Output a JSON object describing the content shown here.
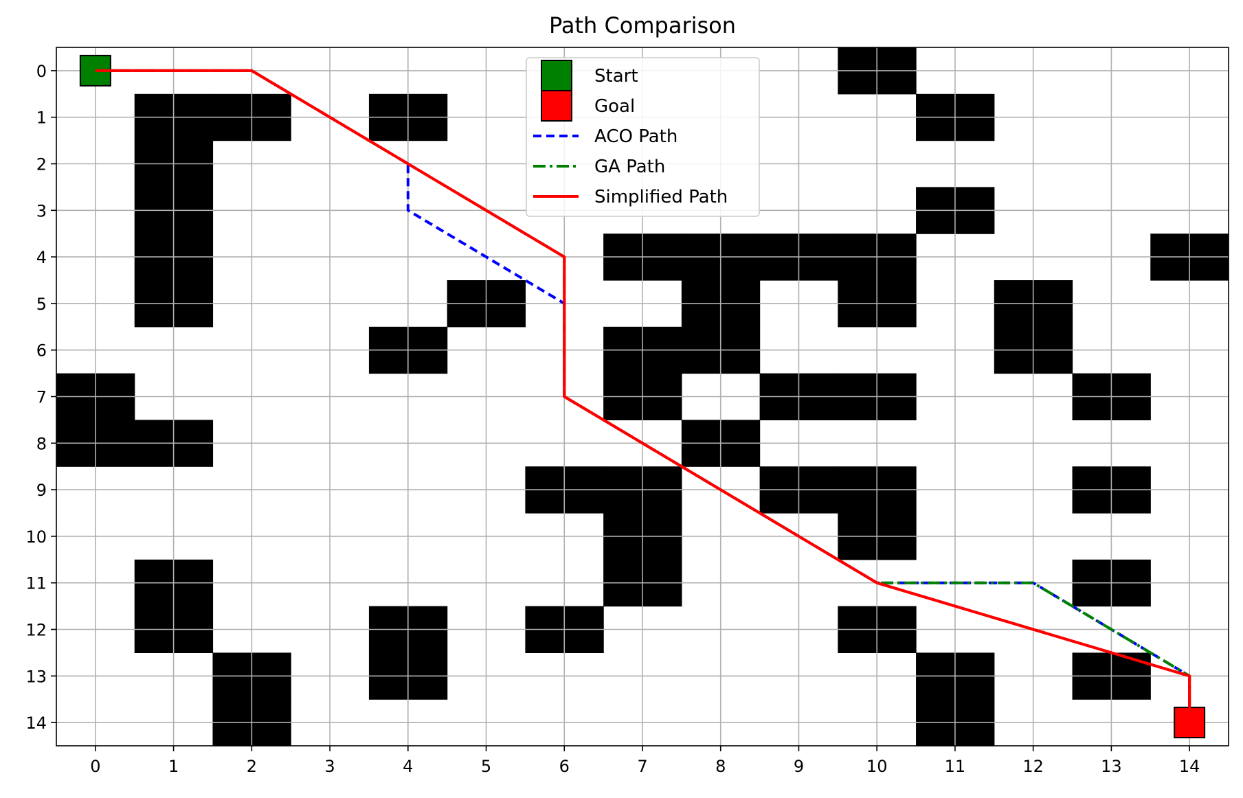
{
  "chart_data": {
    "type": "heatmap",
    "title": "Path Comparison",
    "xlabel": "",
    "ylabel": "",
    "grid_size": [
      15,
      15
    ],
    "xlim": [
      -0.5,
      14.5
    ],
    "ylim": [
      14.5,
      -0.5
    ],
    "x_ticks": [
      0,
      1,
      2,
      3,
      4,
      5,
      6,
      7,
      8,
      9,
      10,
      11,
      12,
      13,
      14
    ],
    "y_ticks": [
      0,
      1,
      2,
      3,
      4,
      5,
      6,
      7,
      8,
      9,
      10,
      11,
      12,
      13,
      14
    ],
    "grid": true,
    "obstacle_color": "#000000",
    "free_color": "#ffffff",
    "obstacles": [
      [
        0,
        10
      ],
      [
        1,
        1
      ],
      [
        1,
        2
      ],
      [
        1,
        4
      ],
      [
        1,
        11
      ],
      [
        2,
        1
      ],
      [
        3,
        1
      ],
      [
        3,
        11
      ],
      [
        4,
        1
      ],
      [
        4,
        7
      ],
      [
        4,
        8
      ],
      [
        4,
        9
      ],
      [
        4,
        10
      ],
      [
        4,
        14
      ],
      [
        5,
        1
      ],
      [
        5,
        5
      ],
      [
        5,
        8
      ],
      [
        5,
        10
      ],
      [
        5,
        12
      ],
      [
        6,
        4
      ],
      [
        6,
        7
      ],
      [
        6,
        8
      ],
      [
        6,
        12
      ],
      [
        7,
        0
      ],
      [
        7,
        7
      ],
      [
        7,
        9
      ],
      [
        7,
        10
      ],
      [
        7,
        13
      ],
      [
        8,
        0
      ],
      [
        8,
        1
      ],
      [
        8,
        8
      ],
      [
        9,
        6
      ],
      [
        9,
        7
      ],
      [
        9,
        9
      ],
      [
        9,
        10
      ],
      [
        9,
        13
      ],
      [
        10,
        7
      ],
      [
        10,
        10
      ],
      [
        11,
        1
      ],
      [
        11,
        7
      ],
      [
        11,
        13
      ],
      [
        12,
        1
      ],
      [
        12,
        4
      ],
      [
        12,
        6
      ],
      [
        12,
        10
      ],
      [
        13,
        2
      ],
      [
        13,
        4
      ],
      [
        13,
        11
      ],
      [
        13,
        13
      ],
      [
        14,
        2
      ],
      [
        14,
        11
      ]
    ],
    "markers": {
      "start": {
        "label": "Start",
        "x": 0,
        "y": 0,
        "color": "#008000"
      },
      "goal": {
        "label": "Goal",
        "x": 14,
        "y": 14,
        "color": "#ff0000"
      }
    },
    "series": [
      {
        "name": "ACO Path",
        "color": "#0000ff",
        "style": "dashed",
        "points": [
          [
            0,
            0
          ],
          [
            2,
            0
          ],
          [
            4,
            2
          ],
          [
            4,
            3
          ],
          [
            6,
            5
          ],
          [
            6,
            7
          ],
          [
            10,
            11
          ],
          [
            12,
            11
          ],
          [
            14,
            13
          ],
          [
            14,
            14
          ]
        ]
      },
      {
        "name": "GA Path",
        "color": "#008000",
        "style": "dashdot",
        "points": [
          [
            0,
            0
          ],
          [
            2,
            0
          ],
          [
            6,
            4
          ],
          [
            6,
            7
          ],
          [
            10,
            11
          ],
          [
            12,
            11
          ],
          [
            14,
            13
          ],
          [
            14,
            14
          ]
        ]
      },
      {
        "name": "Simplified Path",
        "color": "#ff0000",
        "style": "solid",
        "points": [
          [
            0,
            0
          ],
          [
            2,
            0
          ],
          [
            6,
            4
          ],
          [
            6,
            7
          ],
          [
            10,
            11
          ],
          [
            14,
            13
          ],
          [
            14,
            14
          ]
        ]
      }
    ],
    "legend": {
      "position": "top-center",
      "entries": [
        {
          "label": "Start",
          "kind": "square",
          "color": "#008000"
        },
        {
          "label": "Goal",
          "kind": "square",
          "color": "#ff0000"
        },
        {
          "label": "ACO Path",
          "kind": "line",
          "color": "#0000ff",
          "style": "dashed"
        },
        {
          "label": "GA Path",
          "kind": "line",
          "color": "#008000",
          "style": "dashdot"
        },
        {
          "label": "Simplified Path",
          "kind": "line",
          "color": "#ff0000",
          "style": "solid"
        }
      ]
    }
  }
}
